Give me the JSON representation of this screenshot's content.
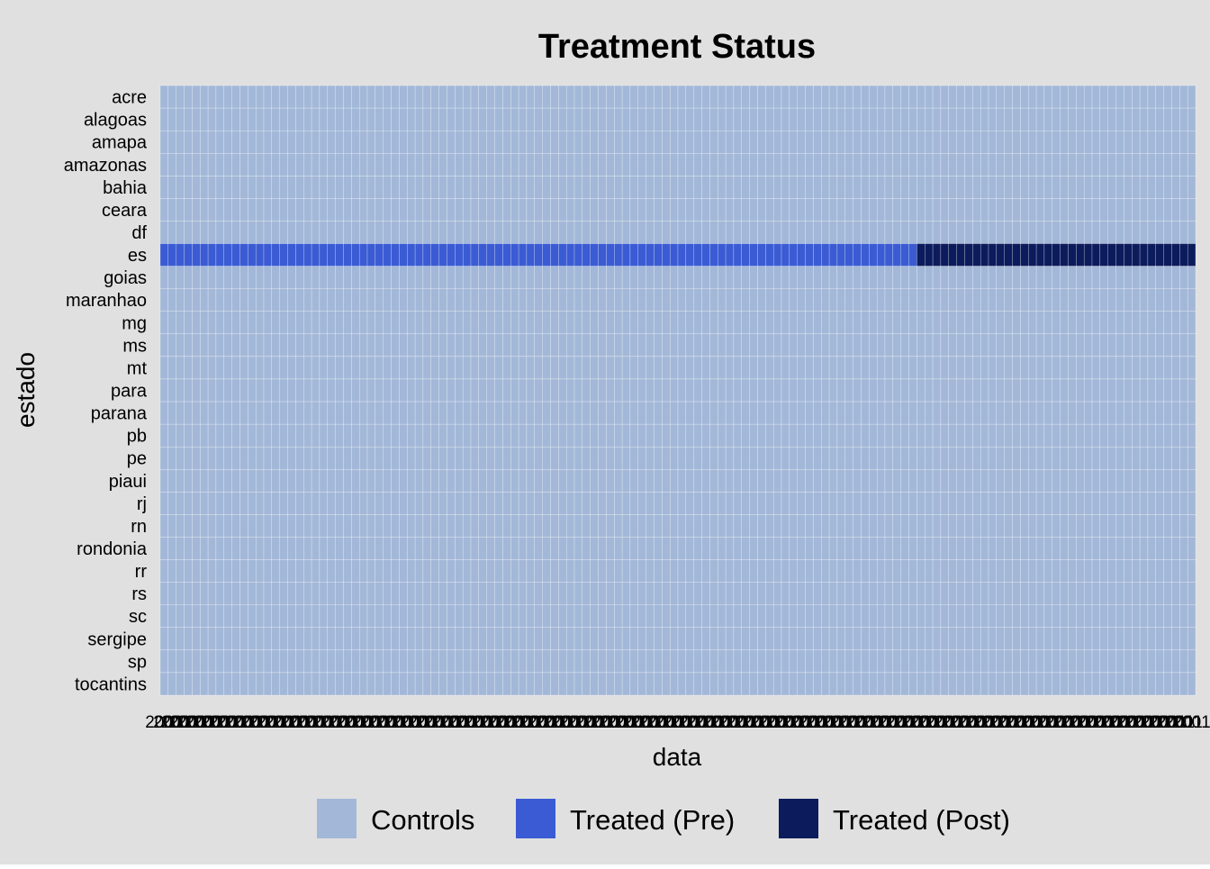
{
  "chart_data": {
    "type": "heatmap",
    "title": "Treatment Status",
    "xlabel": "data",
    "ylabel": "estado",
    "x_tick_label_example": "2001",
    "n_periods": 130,
    "rows": [
      "acre",
      "alagoas",
      "amapa",
      "amazonas",
      "bahia",
      "ceara",
      "df",
      "es",
      "goias",
      "maranhao",
      "mg",
      "ms",
      "mt",
      "para",
      "parana",
      "pb",
      "pe",
      "piaui",
      "rj",
      "rn",
      "rondonia",
      "rr",
      "rs",
      "sc",
      "sergipe",
      "sp",
      "tocantins"
    ],
    "treated_row": "es",
    "treatment_start_period_index": 95,
    "categories": [
      {
        "key": "control",
        "label": "Controls",
        "color": "#a3b8d8"
      },
      {
        "key": "pre",
        "label": "Treated (Pre)",
        "color": "#3a5bd3"
      },
      {
        "key": "post",
        "label": "Treated (Post)",
        "color": "#0c1b5c"
      }
    ],
    "grid": true,
    "legend_position": "bottom",
    "colors": {
      "background": "#e0e0e0",
      "cell_border": "#ffffff",
      "text": "#000000"
    }
  }
}
